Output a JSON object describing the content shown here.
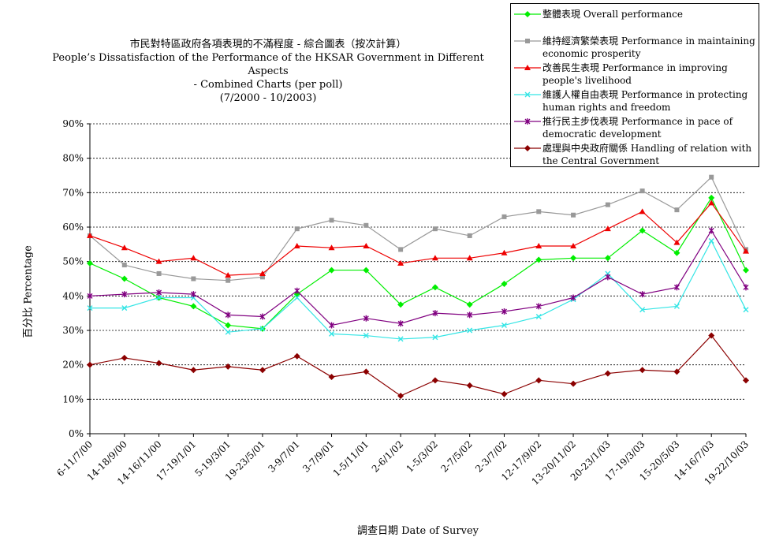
{
  "chart_data": {
    "type": "line",
    "title_lines": [
      "市民對特區政府各項表現的不滿程度 - 綜合圖表（按次計算）",
      "People’s Dissatisfaction of the Performance of the HKSAR Government in Different Aspects",
      "- Combined Charts (per poll)",
      "(7/2000 - 10/2003)"
    ],
    "xlabel": "調查日期 Date of Survey",
    "ylabel": "百分比 Percentage",
    "ylim": [
      0,
      90
    ],
    "yticks": [
      "0%",
      "10%",
      "20%",
      "30%",
      "40%",
      "50%",
      "60%",
      "70%",
      "80%",
      "90%"
    ],
    "grid": "horizontal dashed",
    "legend_position": "top-right",
    "categories": [
      "6-11/7/00",
      "14-18/9/00",
      "14-16/11/00",
      "17-19/1/01",
      "5-19/3/01",
      "19-23/5/01",
      "3-9/7/01",
      "3-7/9/01",
      "1-5/11/01",
      "2-6/1/02",
      "1-5/3/02",
      "2-7/5/02",
      "2-3/7/02",
      "12-17/9/02",
      "13-20/11/02",
      "20-23/1/03",
      "17-19/3/03",
      "15-20/5/03",
      "14-16/7/03",
      "19-22/10/03"
    ],
    "series": [
      {
        "name": "整體表現 Overall performance",
        "color": "#00ee00",
        "marker": "diamond",
        "values": [
          49.5,
          45,
          39.5,
          37,
          31.5,
          30.5,
          40.5,
          47.5,
          47.5,
          37.5,
          42.5,
          37.5,
          43.5,
          50.5,
          51,
          51,
          59,
          52.5,
          68.5,
          47.5
        ]
      },
      {
        "name": "維持經濟繁榮表現 Performance in maintaining economic prosperity",
        "color": "#999999",
        "marker": "square",
        "values": [
          57.5,
          49,
          46.5,
          45,
          44.5,
          45.5,
          59.5,
          62,
          60.5,
          53.5,
          59.5,
          57.5,
          63,
          64.5,
          63.5,
          66.5,
          70.5,
          65,
          74.5,
          53.5
        ]
      },
      {
        "name": "改善民生表現 Performance in improving people's livelihood",
        "color": "#ee0000",
        "marker": "triangle",
        "values": [
          57.5,
          54,
          50,
          51,
          46,
          46.5,
          54.5,
          54,
          54.5,
          49.5,
          51,
          51,
          52.5,
          54.5,
          54.5,
          59.5,
          64.5,
          55.5,
          67,
          53
        ]
      },
      {
        "name": "維護人權自由表現 Performance in protecting human rights and freedom",
        "color": "#33e5e5",
        "marker": "x",
        "values": [
          36.5,
          36.5,
          39.5,
          39.5,
          29.5,
          30.5,
          39.5,
          29,
          28.5,
          27.5,
          28,
          30,
          31.5,
          34,
          39,
          46.5,
          36,
          37,
          56,
          36
        ]
      },
      {
        "name": "推行民主步伐表現 Performance in pace of democratic development",
        "color": "#800080",
        "marker": "star",
        "values": [
          40,
          40.5,
          41,
          40.5,
          34.5,
          34,
          41.5,
          31.5,
          33.5,
          32,
          35,
          34.5,
          35.5,
          37,
          39.5,
          45.5,
          40.5,
          42.5,
          59,
          42.5
        ]
      },
      {
        "name": "處理與中央政府關係 Handling of relation with the Central Government",
        "color": "#8b0000",
        "marker": "diamond",
        "values": [
          20,
          22,
          20.5,
          18.5,
          19.5,
          18.5,
          22.5,
          16.5,
          18,
          11,
          15.5,
          14,
          11.5,
          15.5,
          14.5,
          17.5,
          18.5,
          18,
          28.5,
          15.5
        ]
      }
    ]
  }
}
